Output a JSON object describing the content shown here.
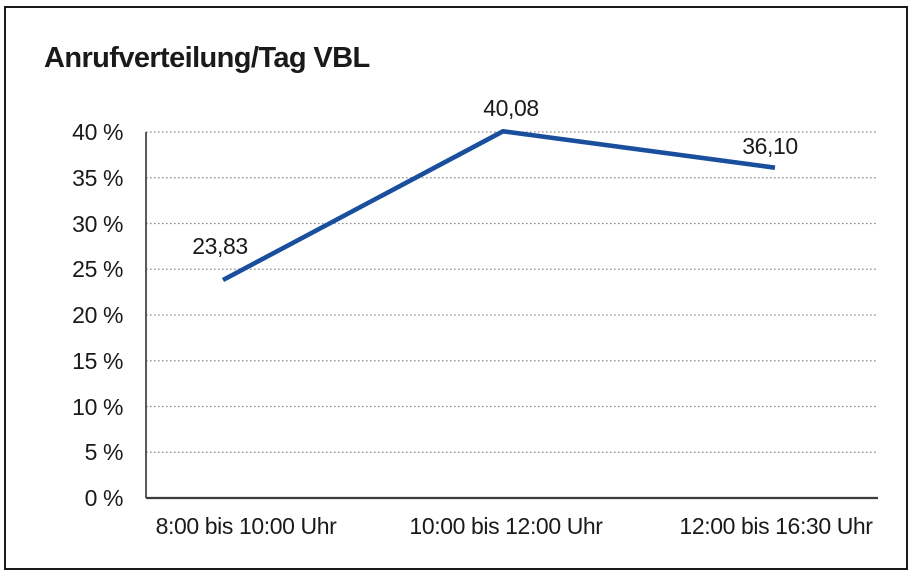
{
  "page": {
    "background": "#ffffff",
    "frame_border_color": "#1a1a1a"
  },
  "chart_data": {
    "type": "line",
    "title": "Anrufverteilung/Tag VBL",
    "categories": [
      "8:00 bis 10:00 Uhr",
      "10:00 bis 12:00 Uhr",
      "12:00 bis 16:30 Uhr"
    ],
    "values": [
      23.83,
      40.08,
      36.1
    ],
    "data_labels": [
      "23,83",
      "40,08",
      "36,10"
    ],
    "y_tick_labels": [
      "0 %",
      "5 %",
      "10 %",
      "15 %",
      "20 %",
      "25 %",
      "30 %",
      "35 %",
      "40 %"
    ],
    "ylim": [
      0,
      40
    ],
    "y_tick_step": 5,
    "xlabel": "",
    "ylabel": "",
    "legend": "none",
    "grid": "horizontal-dotted",
    "line_color": "#1a4f9e",
    "axis_color": "#3d3d3d",
    "grid_color": "#8a8a8a",
    "text_color": "#1a1a1a"
  }
}
